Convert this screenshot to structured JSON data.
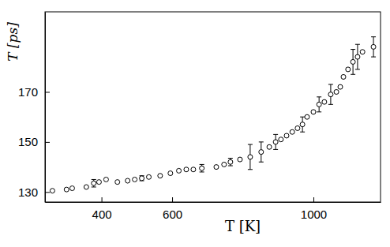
{
  "chart_data": {
    "type": "scatter",
    "x_label": "T [K]",
    "y_label": "T [ps]",
    "x": [
      261,
      301,
      317,
      357,
      378,
      393,
      413,
      445,
      474,
      494,
      514,
      534,
      566,
      595,
      619,
      640,
      660,
      684,
      725,
      747,
      765,
      792,
      821,
      852,
      875,
      893,
      908,
      924,
      940,
      955,
      969,
      982,
      1000,
      1016,
      1031,
      1049,
      1065,
      1076,
      1085,
      1098,
      1112,
      1125,
      1139,
      1170
    ],
    "values": [
      130.5,
      131,
      131.5,
      132,
      133.5,
      134,
      135,
      134,
      134.5,
      135,
      135.5,
      136,
      136.5,
      137.5,
      138.5,
      139,
      139,
      139.5,
      140,
      141,
      142,
      143,
      144,
      146,
      148,
      150,
      151,
      152.5,
      154,
      155.5,
      157,
      160,
      162,
      165,
      166,
      169,
      170,
      172,
      176,
      179,
      182,
      184,
      186,
      188
    ],
    "errors": [
      null,
      null,
      null,
      null,
      1.5,
      null,
      null,
      null,
      null,
      null,
      1,
      null,
      null,
      null,
      null,
      null,
      null,
      1.5,
      null,
      null,
      1.5,
      null,
      5,
      4,
      null,
      3,
      null,
      null,
      null,
      null,
      3,
      null,
      null,
      3,
      null,
      4,
      null,
      null,
      null,
      null,
      5,
      5,
      null,
      4
    ],
    "xlim": [
      240,
      1190
    ],
    "ylim": [
      126,
      202
    ],
    "xticks": [
      400,
      600,
      1000
    ],
    "yticks": [
      130,
      150,
      170
    ],
    "color": "#000000",
    "marker": "circle-open",
    "grid": false
  }
}
